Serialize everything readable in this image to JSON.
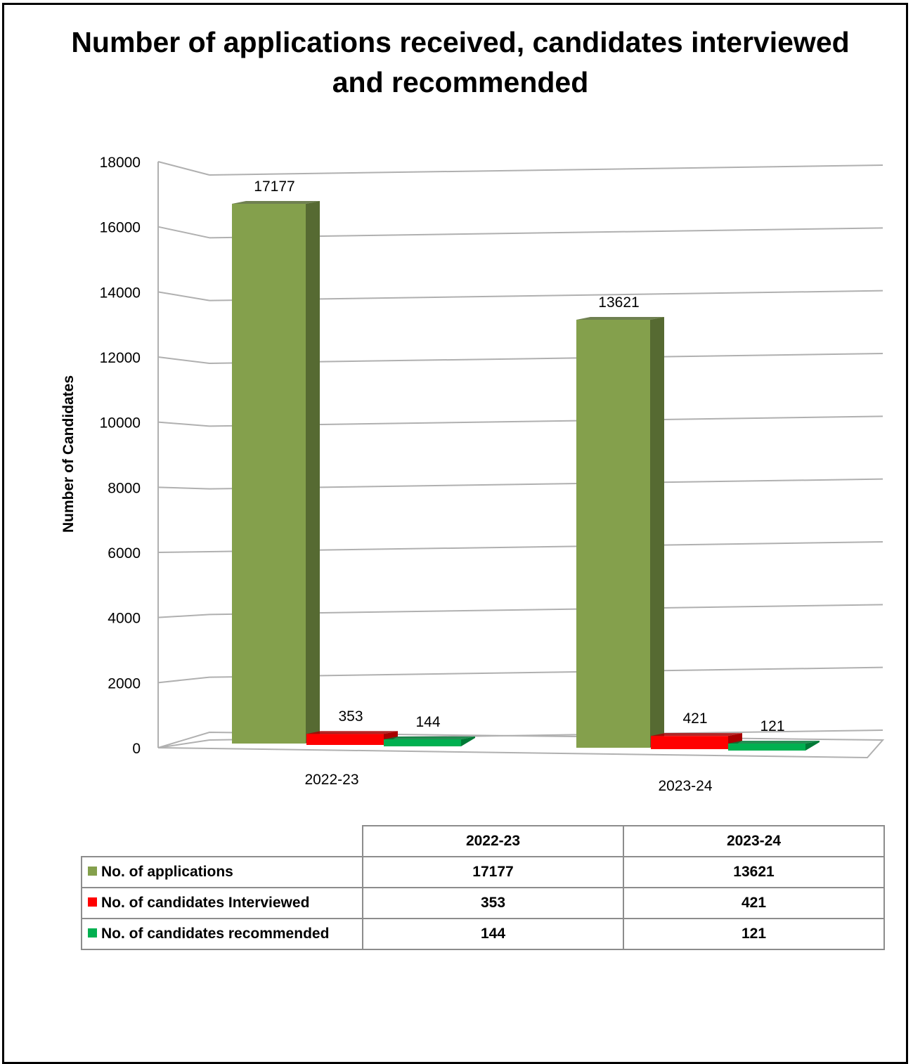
{
  "chart_data": {
    "type": "bar",
    "title": "Number of applications received, candidates interviewed and recommended",
    "ylabel": "Number of Candidates",
    "xlabel": "",
    "ylim": [
      0,
      18000
    ],
    "yticks": [
      0,
      2000,
      4000,
      6000,
      8000,
      10000,
      12000,
      14000,
      16000,
      18000
    ],
    "categories": [
      "2022-23",
      "2023-24"
    ],
    "series": [
      {
        "name": "No. of applications",
        "values": [
          17177,
          13621
        ],
        "color": "#84a04c",
        "side_color": "#566a32"
      },
      {
        "name": "No. of candidates Interviewed",
        "values": [
          353,
          421
        ],
        "color": "#ff0000",
        "side_color": "#a80000"
      },
      {
        "name": "No. of candidates recommended",
        "values": [
          144,
          121
        ],
        "color": "#00b050",
        "side_color": "#007a36"
      }
    ],
    "grid": true,
    "legend": "data table below chart"
  }
}
